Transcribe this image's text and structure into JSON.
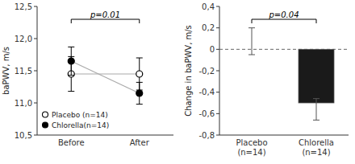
{
  "chart_data": [
    {
      "type": "line",
      "categories": [
        "Before",
        "After"
      ],
      "ylabel": "baPWV, m/s",
      "ylim": [
        10.5,
        12.5
      ],
      "yticks": [
        {
          "value": 10.5,
          "label": "10,5"
        },
        {
          "value": 11.0,
          "label": "11,0"
        },
        {
          "value": 11.5,
          "label": "11,5"
        },
        {
          "value": 12.0,
          "label": "12,0"
        },
        {
          "value": 12.5,
          "label": "12,5"
        }
      ],
      "color": "#aaaaaa",
      "series": [
        {
          "name": "Placebo (n=14)",
          "color": "#000000",
          "marker": "open-circle",
          "values": [
            11.45,
            11.45
          ],
          "errors": [
            0.27,
            0.25
          ]
        },
        {
          "name": "Chlorella(n=14)",
          "color": "#000000",
          "marker": "circle",
          "values": [
            11.65,
            11.15
          ],
          "errors": [
            0.22,
            0.17
          ]
        }
      ],
      "annotations": [
        "p=0.01"
      ],
      "legend": "lower left",
      "grid": false
    },
    {
      "type": "bar",
      "categories": [
        "Placebo\n(n=14)",
        "Chlorella\n(n=14)"
      ],
      "ylabel": "Change in baPWV, m/s",
      "ylim": [
        -0.8,
        0.4
      ],
      "yticks": [
        {
          "value": -0.8,
          "label": "-0,8"
        },
        {
          "value": -0.6,
          "label": "-0,6"
        },
        {
          "value": -0.4,
          "label": "-0,4"
        },
        {
          "value": -0.2,
          "label": "-0,2"
        },
        0,
        {
          "value": 0.2,
          "label": "0,2"
        },
        {
          "value": 0.4,
          "label": "0,4"
        }
      ],
      "values": [
        0.0,
        -0.5
      ],
      "error_minus": [
        0.05,
        0.16
      ],
      "error_plus": [
        0.2,
        0.04
      ],
      "colors": [
        "#cccccc",
        "#1a1a1a"
      ],
      "annotations": [
        "p=0.04"
      ],
      "grid": false
    }
  ]
}
